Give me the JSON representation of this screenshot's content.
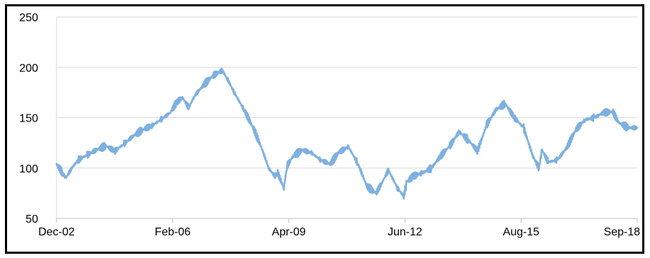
{
  "chart_data": {
    "type": "line",
    "title": "",
    "xlabel": "",
    "ylabel": "",
    "x_tick_labels": [
      "Dec-02",
      "Feb-06",
      "Apr-09",
      "Jun-12",
      "Aug-15",
      "Sep-18"
    ],
    "y_tick_labels": [
      "50",
      "100",
      "150",
      "200",
      "250"
    ],
    "y_ticks": [
      50,
      100,
      150,
      200,
      250
    ],
    "ylim": [
      50,
      250
    ],
    "xlim": [
      "2002-12",
      "2018-09"
    ],
    "grid": true,
    "legend": "none",
    "series": [
      {
        "color": "#7EB0E0",
        "x": [
          "2002-12",
          "2003-02",
          "2003-03",
          "2003-05",
          "2003-07",
          "2003-10",
          "2004-01",
          "2004-04",
          "2004-07",
          "2004-10",
          "2005-01",
          "2005-04",
          "2005-07",
          "2005-10",
          "2006-01",
          "2006-03",
          "2006-05",
          "2006-07",
          "2006-09",
          "2006-12",
          "2007-03",
          "2007-06",
          "2007-08",
          "2007-10",
          "2008-01",
          "2008-04",
          "2008-07",
          "2008-09",
          "2008-11",
          "2008-12",
          "2009-02",
          "2009-03",
          "2009-05",
          "2009-08",
          "2009-11",
          "2010-02",
          "2010-05",
          "2010-08",
          "2010-11",
          "2011-02",
          "2011-05",
          "2011-08",
          "2011-10",
          "2011-12",
          "2012-03",
          "2012-05",
          "2012-06",
          "2012-08",
          "2012-11",
          "2013-02",
          "2013-05",
          "2013-08",
          "2013-11",
          "2014-02",
          "2014-05",
          "2014-08",
          "2014-11",
          "2015-02",
          "2015-05",
          "2015-08",
          "2015-11",
          "2016-01",
          "2016-02",
          "2016-04",
          "2016-07",
          "2016-10",
          "2017-01",
          "2017-04",
          "2017-07",
          "2017-10",
          "2018-01",
          "2018-03",
          "2018-06",
          "2018-09"
        ],
        "y": [
          104,
          95,
          90,
          100,
          108,
          113,
          118,
          122,
          117,
          124,
          132,
          138,
          142,
          148,
          155,
          165,
          170,
          160,
          172,
          183,
          192,
          197,
          186,
          174,
          158,
          140,
          118,
          100,
          92,
          95,
          80,
          102,
          112,
          118,
          115,
          108,
          104,
          116,
          121,
          105,
          82,
          75,
          86,
          98,
          80,
          72,
          86,
          92,
          95,
          100,
          112,
          122,
          136,
          128,
          117,
          143,
          158,
          164,
          150,
          140,
          112,
          100,
          118,
          106,
          108,
          120,
          138,
          148,
          150,
          155,
          156,
          145,
          140,
          140
        ]
      }
    ]
  }
}
